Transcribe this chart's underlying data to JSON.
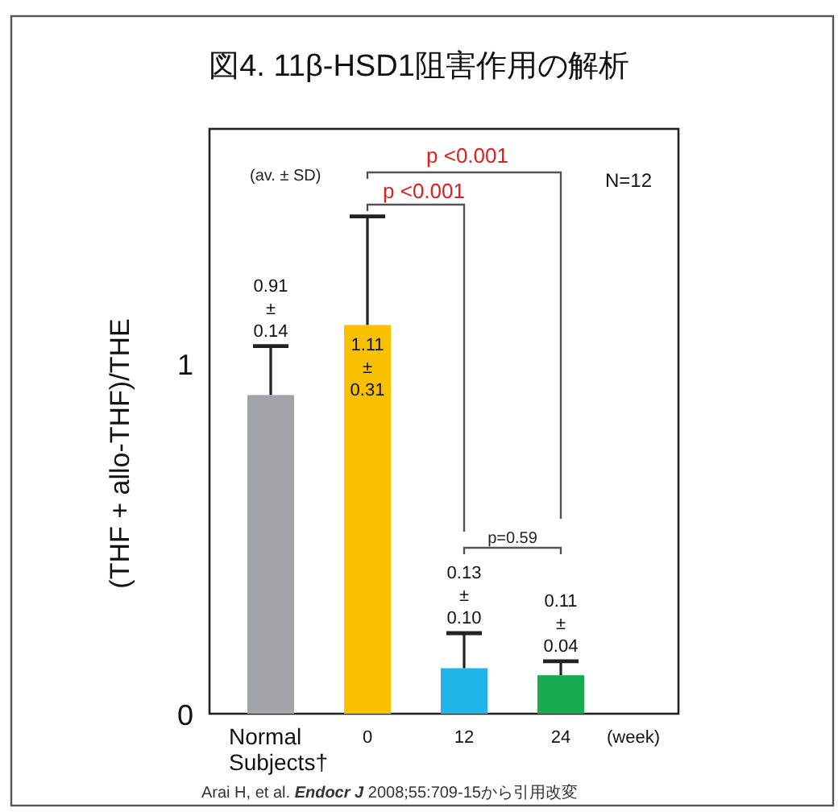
{
  "chart_data": {
    "type": "bar",
    "title": "図4. 11β-HSD1阻害作用の解析",
    "ylabel": "(THF + allo-THF)/THE",
    "xlabel": "(week)",
    "categories": [
      "Normal Subjects†",
      "0",
      "12",
      "24"
    ],
    "values": [
      0.91,
      1.11,
      0.13,
      0.11
    ],
    "errors": [
      0.14,
      0.31,
      0.1,
      0.04
    ],
    "value_labels": [
      "0.91 ± 0.14",
      "1.11 ± 0.31",
      "0.13 ± 0.10",
      "0.11 ± 0.04"
    ],
    "colors": [
      "#a1a4a9",
      "#f9c000",
      "#22b5e9",
      "#1aaa52"
    ],
    "ylim": [
      0,
      1.67
    ],
    "yticks": [
      0,
      1
    ],
    "grid": false,
    "legend": false,
    "annotations": [
      "(av. ± SD)",
      "N=12",
      "p <0.001",
      "p <0.001",
      "p=0.59",
      "Arai H, et al. *Endocr J* 2008;55:709-15から引用改変"
    ]
  }
}
